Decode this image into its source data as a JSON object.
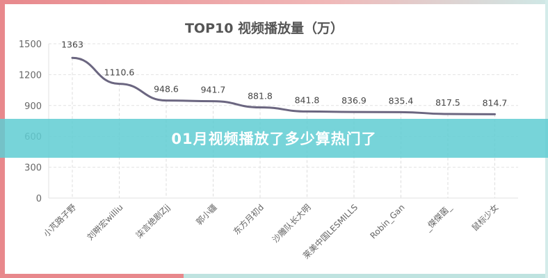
{
  "banner": {
    "text": "01月视频播放了多少算热门了"
  },
  "chart_data": {
    "type": "line",
    "title": "TOP10 视频播放量（万）",
    "categories": [
      "小芃路子野",
      "刘畊宏williu",
      "柒言绝剧Zjj",
      "郭小疆",
      "东方月初d",
      "沙雕队长大明",
      "莱美中国LESMILLS",
      "Robin_Gan",
      "_傑傑菌_",
      "鼠标少女"
    ],
    "values": [
      1363,
      1110.6,
      948.6,
      941.7,
      881.8,
      841.8,
      836.9,
      835.4,
      817.5,
      814.7
    ],
    "value_labels": [
      "1363",
      "1110.6",
      "948.6",
      "941.7",
      "881.8",
      "841.8",
      "836.9",
      "835.4",
      "817.5",
      "814.7"
    ],
    "ylim": [
      0,
      1500
    ],
    "yticks": [
      "0",
      "300",
      "600",
      "900",
      "1200",
      "1500"
    ],
    "grid": true,
    "line_color": "#6b6680"
  }
}
